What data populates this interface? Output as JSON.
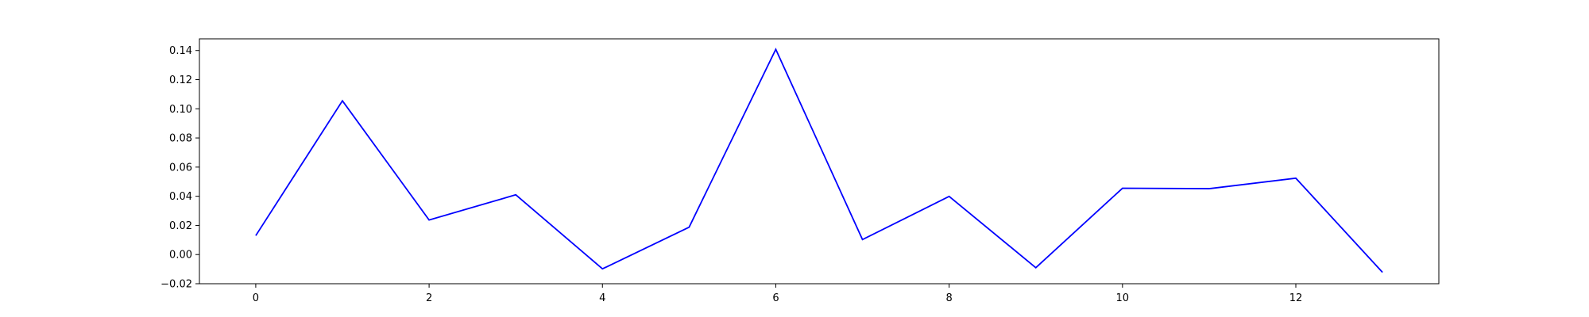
{
  "chart_data": {
    "type": "line",
    "title": "",
    "xlabel": "",
    "ylabel": "",
    "xlim": [
      -0.65,
      13.65
    ],
    "ylim": [
      -0.02,
      0.148
    ],
    "x_ticks": [
      0,
      2,
      4,
      6,
      8,
      10,
      12
    ],
    "x_tick_labels": [
      "0",
      "2",
      "4",
      "6",
      "8",
      "10",
      "12"
    ],
    "y_ticks": [
      -0.02,
      0.0,
      0.02,
      0.04,
      0.06,
      0.08,
      0.1,
      0.12,
      0.14
    ],
    "y_tick_labels": [
      "−0.02",
      "0.00",
      "0.02",
      "0.04",
      "0.06",
      "0.08",
      "0.10",
      "0.12",
      "0.14"
    ],
    "grid": false,
    "legend": "none",
    "x": [
      0,
      1,
      2,
      3,
      4,
      5,
      6,
      7,
      8,
      9,
      10,
      11,
      12,
      13
    ],
    "series": [
      {
        "color": "#0000ff",
        "values": [
          0.013,
          0.1055,
          0.0237,
          0.041,
          -0.0098,
          0.0188,
          0.1408,
          0.0103,
          0.0399,
          -0.009,
          0.0455,
          0.0452,
          0.0524,
          -0.0122
        ]
      }
    ]
  }
}
